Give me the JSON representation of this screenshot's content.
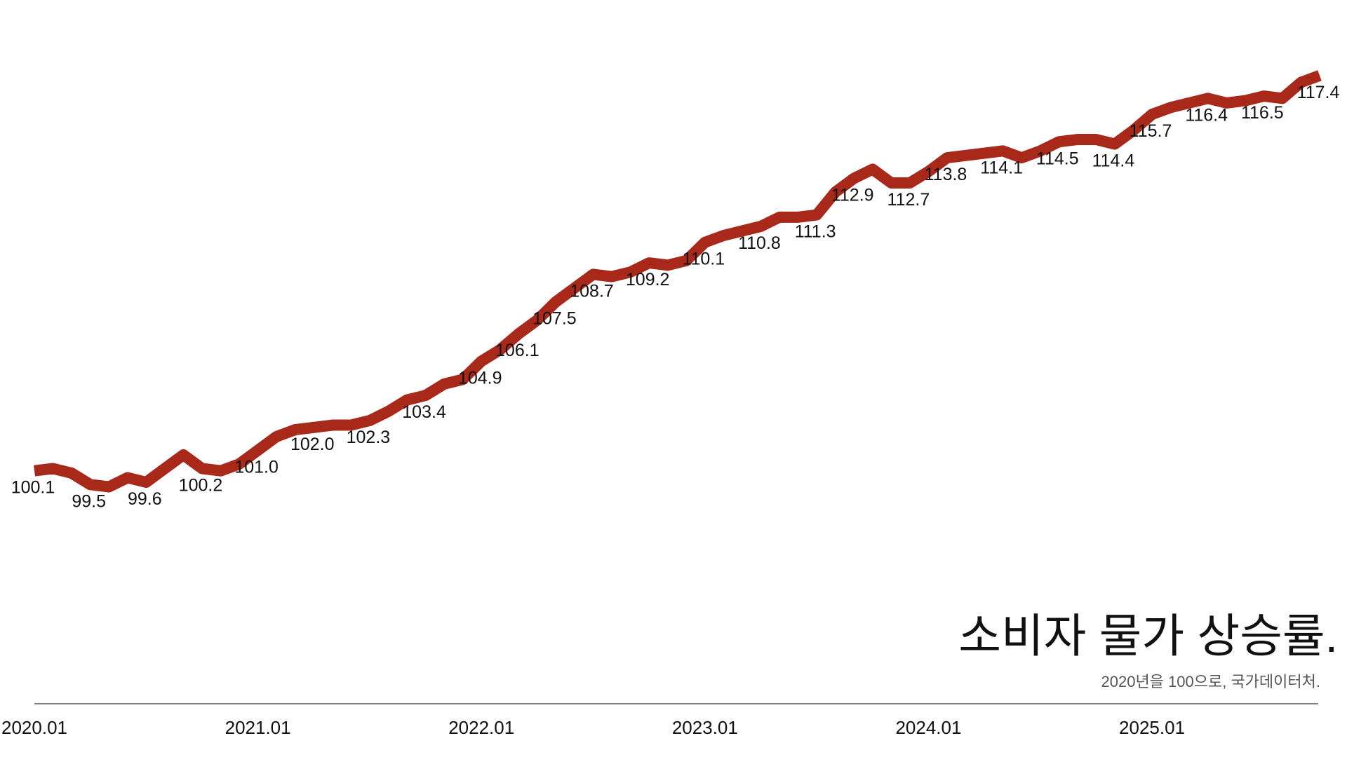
{
  "chart_data": {
    "type": "line",
    "title": "소비자 물가 상승률.",
    "subtitle": "2020년을 100으로, 국가데이터처.",
    "color": "#a8281a",
    "ylim": [
      95,
      120
    ],
    "categories": [
      "2020.01",
      null,
      null,
      null,
      null,
      null,
      null,
      null,
      null,
      null,
      null,
      null,
      "2021.01",
      null,
      null,
      null,
      null,
      null,
      null,
      null,
      null,
      null,
      null,
      null,
      "2022.01",
      null,
      null,
      null,
      null,
      null,
      null,
      null,
      null,
      null,
      null,
      null,
      "2023.01",
      null,
      null,
      null,
      null,
      null,
      null,
      null,
      null,
      null,
      null,
      null,
      "2024.01",
      null,
      null,
      null,
      null,
      null,
      null,
      null,
      null,
      null,
      null,
      null,
      "2025.01",
      null,
      null,
      null,
      null,
      null,
      null,
      null,
      null,
      null
    ],
    "values": [
      100.1,
      100.2,
      100.0,
      99.5,
      99.4,
      99.8,
      99.6,
      100.2,
      100.8,
      100.2,
      100.1,
      100.4,
      101.0,
      101.6,
      101.9,
      102.0,
      102.1,
      102.1,
      102.3,
      102.7,
      103.2,
      103.4,
      103.9,
      104.1,
      104.9,
      105.4,
      106.1,
      106.7,
      107.5,
      108.1,
      108.7,
      108.6,
      108.8,
      109.2,
      109.1,
      109.3,
      110.1,
      110.4,
      110.6,
      110.8,
      111.2,
      111.2,
      111.3,
      112.3,
      112.9,
      113.3,
      112.7,
      112.7,
      113.2,
      113.8,
      113.9,
      114.0,
      114.1,
      113.8,
      114.1,
      114.5,
      114.6,
      114.6,
      114.4,
      115.0,
      115.7,
      116.0,
      116.2,
      116.4,
      116.2,
      116.3,
      116.5,
      116.4,
      117.1,
      117.4
    ],
    "value_labels": [
      "100.1",
      null,
      null,
      "99.5",
      null,
      null,
      "99.6",
      null,
      null,
      "100.2",
      null,
      null,
      "101.0",
      null,
      null,
      "102.0",
      null,
      null,
      "102.3",
      null,
      null,
      "103.4",
      null,
      null,
      "104.9",
      null,
      "106.1",
      null,
      "107.5",
      null,
      "108.7",
      null,
      null,
      "109.2",
      null,
      null,
      "110.1",
      null,
      null,
      "110.8",
      null,
      null,
      "111.3",
      null,
      "112.9",
      null,
      null,
      "112.7",
      null,
      "113.8",
      null,
      null,
      "114.1",
      null,
      null,
      "114.5",
      null,
      null,
      "114.4",
      null,
      "115.7",
      null,
      null,
      "116.4",
      null,
      null,
      "116.5",
      null,
      null,
      "117.4"
    ]
  }
}
